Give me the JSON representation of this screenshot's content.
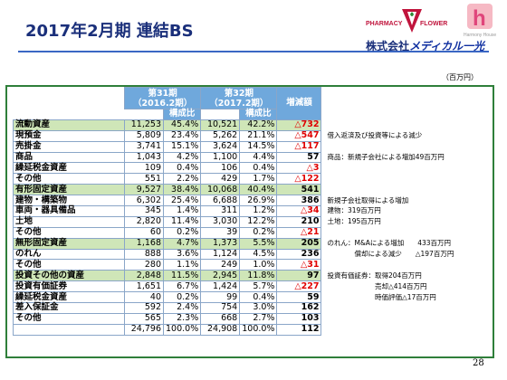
{
  "title": "2017年2月期 連結BS",
  "logo": {
    "pharmacy": "PHARMACY",
    "flower": "FLOWER",
    "harmony": "Harmony House",
    "letter": "h"
  },
  "company": {
    "prefix": "株式会社",
    "brand": "メディカル一光"
  },
  "unit": "（百万円）",
  "headers": {
    "p31_top": "第31期\n（2016.2期）",
    "p32_top": "第32期\n（2017.2期）",
    "ratio": "構成比",
    "change": "増減額"
  },
  "rows": [
    {
      "name": "流動資産",
      "v31": "11,253",
      "r31": "45.4%",
      "v32": "10,521",
      "r32": "42.2%",
      "chg": "△732",
      "neg": true,
      "type": "sec",
      "note": ""
    },
    {
      "name": "現預金",
      "v31": "5,809",
      "r31": "23.4%",
      "v32": "5,262",
      "r32": "21.1%",
      "chg": "△547",
      "neg": true,
      "type": "",
      "note": "借入返済及び投資等による減少"
    },
    {
      "name": "売掛金",
      "v31": "3,741",
      "r31": "15.1%",
      "v32": "3,624",
      "r32": "14.5%",
      "chg": "△117",
      "neg": true,
      "type": "",
      "note": ""
    },
    {
      "name": "商品",
      "v31": "1,043",
      "r31": "4.2%",
      "v32": "1,100",
      "r32": "4.4%",
      "chg": "57",
      "neg": false,
      "type": "",
      "note": "商品：新規子会社による増加49百万円"
    },
    {
      "name": "繰延税金資産",
      "v31": "109",
      "r31": "0.4%",
      "v32": "106",
      "r32": "0.4%",
      "chg": "△3",
      "neg": true,
      "type": "",
      "note": ""
    },
    {
      "name": "その他",
      "v31": "551",
      "r31": "2.2%",
      "v32": "429",
      "r32": "1.7%",
      "chg": "△122",
      "neg": true,
      "type": "",
      "note": ""
    },
    {
      "name": "有形固定資産",
      "v31": "9,527",
      "r31": "38.4%",
      "v32": "10,068",
      "r32": "40.4%",
      "chg": "541",
      "neg": false,
      "type": "sec",
      "note": ""
    },
    {
      "name": "建物・構築物",
      "v31": "6,302",
      "r31": "25.4%",
      "v32": "6,688",
      "r32": "26.9%",
      "chg": "386",
      "neg": false,
      "type": "",
      "note": "新規子会社取得による増加"
    },
    {
      "name": "車両・器具備品",
      "v31": "345",
      "r31": "1.4%",
      "v32": "311",
      "r32": "1.2%",
      "chg": "△34",
      "neg": true,
      "type": "",
      "note": "建物：319百万円"
    },
    {
      "name": "土地",
      "v31": "2,820",
      "r31": "11.4%",
      "v32": "3,030",
      "r32": "12.2%",
      "chg": "210",
      "neg": false,
      "type": "",
      "note": "土地：195百万円"
    },
    {
      "name": "その他",
      "v31": "60",
      "r31": "0.2%",
      "v32": "39",
      "r32": "0.2%",
      "chg": "△21",
      "neg": true,
      "type": "",
      "note": ""
    },
    {
      "name": "無形固定資産",
      "v31": "1,168",
      "r31": "4.7%",
      "v32": "1,373",
      "r32": "5.5%",
      "chg": "205",
      "neg": false,
      "type": "sec",
      "note": "のれん：M&Aによる増加　　433百万円"
    },
    {
      "name": "のれん",
      "v31": "888",
      "r31": "3.6%",
      "v32": "1,124",
      "r32": "4.5%",
      "chg": "236",
      "neg": false,
      "type": "",
      "note": "　　　　償却による減少　　△197百万円"
    },
    {
      "name": "その他",
      "v31": "280",
      "r31": "1.1%",
      "v32": "249",
      "r32": "1.0%",
      "chg": "△31",
      "neg": true,
      "type": "",
      "note": ""
    },
    {
      "name": "投資その他の資産",
      "v31": "2,848",
      "r31": "11.5%",
      "v32": "2,945",
      "r32": "11.8%",
      "chg": "97",
      "neg": false,
      "type": "sec",
      "note": "投資有価証券：取得204百万円"
    },
    {
      "name": "投資有価証券",
      "v31": "1,651",
      "r31": "6.7%",
      "v32": "1,424",
      "r32": "5.7%",
      "chg": "△227",
      "neg": true,
      "type": "",
      "note": "　　　　　　　売却△414百万円"
    },
    {
      "name": "繰延税金資産",
      "v31": "40",
      "r31": "0.2%",
      "v32": "99",
      "r32": "0.4%",
      "chg": "59",
      "neg": false,
      "type": "",
      "note": "　　　　　　　時価評価△17百万円"
    },
    {
      "name": "差入保証金",
      "v31": "592",
      "r31": "2.4%",
      "v32": "754",
      "r32": "3.0%",
      "chg": "162",
      "neg": false,
      "type": "",
      "note": ""
    },
    {
      "name": "その他",
      "v31": "565",
      "r31": "2.3%",
      "v32": "668",
      "r32": "2.7%",
      "chg": "103",
      "neg": false,
      "type": "",
      "note": ""
    },
    {
      "name": "",
      "v31": "24,796",
      "r31": "100.0%",
      "v32": "24,908",
      "r32": "100.0%",
      "chg": "112",
      "neg": false,
      "type": "tot",
      "note": ""
    }
  ],
  "page_number": "28"
}
